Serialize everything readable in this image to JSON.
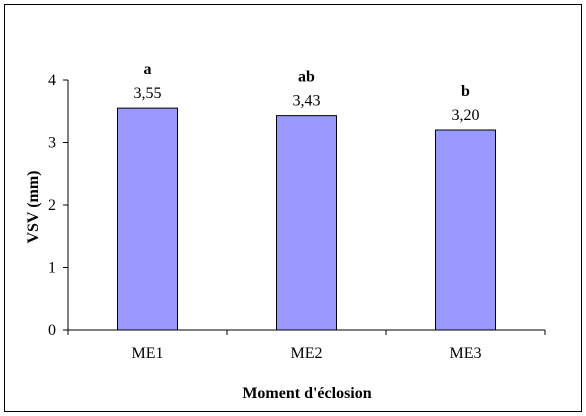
{
  "chart_data": {
    "type": "bar",
    "categories": [
      "ME1",
      "ME2",
      "ME3"
    ],
    "values": [
      3.55,
      3.43,
      3.2
    ],
    "value_labels": [
      "3,55",
      "3,43",
      "3,20"
    ],
    "significance_letters": [
      "a",
      "ab",
      "b"
    ],
    "title": "",
    "xlabel": "Moment d'éclosion",
    "ylabel": "VSV (mm)",
    "ylim": [
      0,
      4
    ],
    "yticks": [
      0,
      1,
      2,
      3,
      4
    ],
    "ytick_labels": [
      "0",
      "1",
      "2",
      "3",
      "4"
    ],
    "grid": false,
    "legend": "none",
    "colors": {
      "bar_fill": "#9999ff",
      "bar_stroke": "#000000",
      "axis": "#000000",
      "text": "#000000",
      "frame": "#000000"
    }
  }
}
